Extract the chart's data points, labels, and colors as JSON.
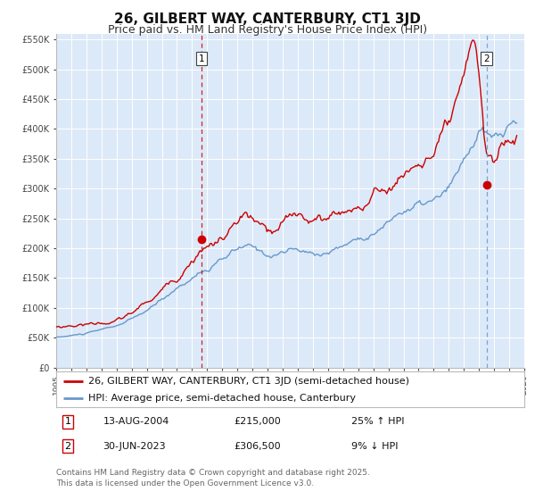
{
  "title": "26, GILBERT WAY, CANTERBURY, CT1 3JD",
  "subtitle": "Price paid vs. HM Land Registry's House Price Index (HPI)",
  "legend_red": "26, GILBERT WAY, CANTERBURY, CT1 3JD (semi-detached house)",
  "legend_blue": "HPI: Average price, semi-detached house, Canterbury",
  "sale1_label": "1",
  "sale1_date": "13-AUG-2004",
  "sale1_price": "£215,000",
  "sale1_hpi": "25% ↑ HPI",
  "sale1_year": 2004.617,
  "sale1_value": 215000,
  "sale2_label": "2",
  "sale2_date": "30-JUN-2023",
  "sale2_price": "£306,500",
  "sale2_hpi": "9% ↓ HPI",
  "sale2_year": 2023.496,
  "sale2_value": 306500,
  "ylim": [
    0,
    560000
  ],
  "xlim_start": 1995,
  "xlim_end": 2026,
  "yticks": [
    0,
    50000,
    100000,
    150000,
    200000,
    250000,
    300000,
    350000,
    400000,
    450000,
    500000,
    550000
  ],
  "ytick_labels": [
    "£0",
    "£50K",
    "£100K",
    "£150K",
    "£200K",
    "£250K",
    "£300K",
    "£350K",
    "£400K",
    "£450K",
    "£500K",
    "£550K"
  ],
  "background_color": "#dce9f8",
  "outer_bg_color": "#ffffff",
  "red_line_color": "#cc0000",
  "blue_line_color": "#6699cc",
  "footer_text": "Contains HM Land Registry data © Crown copyright and database right 2025.\nThis data is licensed under the Open Government Licence v3.0.",
  "title_fontsize": 11,
  "subtitle_fontsize": 9,
  "tick_fontsize": 7,
  "legend_fontsize": 8,
  "footer_fontsize": 6.5
}
